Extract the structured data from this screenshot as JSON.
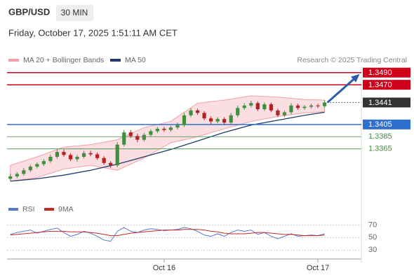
{
  "header": {
    "symbol": "GBP/USD",
    "timeframe": "30 MIN",
    "datetime": "Friday, October 17, 2025 1:51:11 AM CET"
  },
  "chart_data": [
    {
      "type": "candlestick",
      "source": "Research © 2025 Trading Central",
      "xlim": [
        -0.5,
        52.5
      ],
      "ylim": [
        1.3305,
        1.35
      ],
      "xticks": [
        {
          "value": 23,
          "label": "Oct 16"
        },
        {
          "value": 46,
          "label": "Oct 17"
        }
      ],
      "up_color": "#3f8f3f",
      "down_color": "#b22222",
      "x": [
        0,
        1,
        2,
        3,
        4,
        5,
        6,
        7,
        8,
        9,
        10,
        11,
        12,
        13,
        14,
        15,
        16,
        17,
        18,
        19,
        20,
        21,
        22,
        23,
        24,
        25,
        26,
        27,
        28,
        29,
        30,
        31,
        32,
        33,
        34,
        35,
        36,
        37,
        38,
        39,
        40,
        41,
        42,
        43,
        44,
        45,
        46,
        47
      ],
      "open": [
        1.3316,
        1.332,
        1.3324,
        1.333,
        1.3336,
        1.334,
        1.3345,
        1.3352,
        1.336,
        1.3355,
        1.3348,
        1.3352,
        1.3358,
        1.3356,
        1.335,
        1.3342,
        1.3338,
        1.3372,
        1.3392,
        1.3386,
        1.338,
        1.3388,
        1.3394,
        1.3398,
        1.3396,
        1.34,
        1.3404,
        1.342,
        1.3428,
        1.3424,
        1.3415,
        1.341,
        1.3414,
        1.3408,
        1.342,
        1.3432,
        1.3436,
        1.344,
        1.343,
        1.3438,
        1.3428,
        1.342,
        1.3425,
        1.3436,
        1.3432,
        1.3434,
        1.3436,
        1.3435
      ],
      "high": [
        1.3324,
        1.3327,
        1.3334,
        1.3339,
        1.3343,
        1.3348,
        1.3356,
        1.3364,
        1.3364,
        1.3358,
        1.3355,
        1.3362,
        1.3362,
        1.3359,
        1.3353,
        1.3345,
        1.3376,
        1.3396,
        1.3396,
        1.339,
        1.3391,
        1.3397,
        1.3401,
        1.3401,
        1.3403,
        1.3408,
        1.3424,
        1.3432,
        1.3431,
        1.3427,
        1.3418,
        1.3417,
        1.3417,
        1.3424,
        1.3436,
        1.344,
        1.3444,
        1.3443,
        1.3441,
        1.3441,
        1.3431,
        1.3428,
        1.344,
        1.3439,
        1.3437,
        1.3439,
        1.3439,
        1.3445
      ],
      "low": [
        1.3313,
        1.3317,
        1.3321,
        1.3327,
        1.3333,
        1.3337,
        1.3342,
        1.3349,
        1.3352,
        1.3345,
        1.3344,
        1.3349,
        1.3353,
        1.3347,
        1.3339,
        1.3334,
        1.3335,
        1.3369,
        1.3383,
        1.3376,
        1.3377,
        1.3385,
        1.3391,
        1.3393,
        1.3393,
        1.3397,
        1.3401,
        1.3417,
        1.3421,
        1.3412,
        1.3406,
        1.3407,
        1.3404,
        1.3405,
        1.3417,
        1.3429,
        1.3433,
        1.3427,
        1.3427,
        1.3425,
        1.3417,
        1.3417,
        1.3422,
        1.3429,
        1.3429,
        1.3431,
        1.3432,
        1.3432
      ],
      "close": [
        1.332,
        1.3324,
        1.333,
        1.3336,
        1.334,
        1.3345,
        1.3352,
        1.336,
        1.3355,
        1.3348,
        1.3352,
        1.3358,
        1.3356,
        1.335,
        1.3342,
        1.3338,
        1.3372,
        1.3392,
        1.3386,
        1.338,
        1.3388,
        1.3394,
        1.3398,
        1.3396,
        1.34,
        1.3404,
        1.342,
        1.3428,
        1.3424,
        1.3415,
        1.341,
        1.3414,
        1.3408,
        1.342,
        1.3432,
        1.3436,
        1.344,
        1.343,
        1.3438,
        1.3428,
        1.342,
        1.3425,
        1.3436,
        1.3432,
        1.3434,
        1.3436,
        1.3435,
        1.3441
      ],
      "overlays": [
        {
          "name": "MA 20 + Bollinger Bands",
          "color": "#f2a0a8",
          "x": [
            0,
            4,
            8,
            12,
            16,
            20,
            24,
            28,
            32,
            36,
            40,
            44,
            47
          ],
          "upper": [
            1.3338,
            1.3352,
            1.3368,
            1.3372,
            1.338,
            1.34,
            1.341,
            1.344,
            1.3445,
            1.3452,
            1.345,
            1.3446,
            1.3445
          ],
          "lower": [
            1.3312,
            1.3318,
            1.3332,
            1.3338,
            1.333,
            1.335,
            1.3375,
            1.3385,
            1.3398,
            1.341,
            1.3418,
            1.3424,
            1.3426
          ]
        },
        {
          "name": "MA 50",
          "color": "#1f3a6b",
          "x": [
            0,
            4,
            8,
            12,
            16,
            20,
            24,
            28,
            32,
            36,
            40,
            44,
            47
          ],
          "values": [
            1.3312,
            1.3316,
            1.3322,
            1.333,
            1.334,
            1.3352,
            1.3364,
            1.3378,
            1.3392,
            1.3404,
            1.3412,
            1.342,
            1.3425
          ]
        }
      ],
      "levels": [
        {
          "value": 1.349,
          "label": "1.3490",
          "color": "#d0021b",
          "style": "box"
        },
        {
          "value": 1.347,
          "label": "1.3470",
          "color": "#d0021b",
          "style": "box"
        },
        {
          "value": 1.3441,
          "color": "#333333",
          "style": "current"
        },
        {
          "value": 1.3405,
          "color": "#2f6fd0",
          "style": "box"
        },
        {
          "value": 1.3385,
          "color": "#3f8f3f",
          "style": "text"
        },
        {
          "value": 1.3365,
          "color": "#3f8f3f",
          "style": "text"
        }
      ]
    },
    {
      "type": "line",
      "xlim": [
        -0.5,
        52.5
      ],
      "ylim": [
        18,
        85
      ],
      "yticks": [
        30,
        50,
        70
      ],
      "x": [
        0,
        1,
        2,
        3,
        4,
        5,
        6,
        7,
        8,
        9,
        10,
        11,
        12,
        13,
        14,
        15,
        16,
        17,
        18,
        19,
        20,
        21,
        22,
        23,
        24,
        25,
        26,
        27,
        28,
        29,
        30,
        31,
        32,
        33,
        34,
        35,
        36,
        37,
        38,
        39,
        40,
        41,
        42,
        43,
        44,
        45,
        46,
        47
      ],
      "series": [
        {
          "name": "RSI",
          "color": "#5a78c8",
          "values": [
            55,
            58,
            60,
            62,
            57,
            60,
            63,
            65,
            58,
            52,
            55,
            60,
            57,
            52,
            46,
            44,
            60,
            66,
            60,
            58,
            62,
            64,
            63,
            61,
            62,
            63,
            66,
            64,
            60,
            54,
            52,
            56,
            52,
            58,
            62,
            60,
            62,
            55,
            58,
            52,
            48,
            52,
            56,
            52,
            53,
            54,
            53,
            56
          ]
        },
        {
          "name": "9MA",
          "color": "#c62828",
          "values": [
            54,
            55,
            56,
            57,
            58,
            59,
            60,
            60,
            60,
            59,
            59,
            59,
            58,
            57,
            55,
            53,
            53,
            55,
            57,
            58,
            59,
            60,
            61,
            62,
            62,
            62,
            63,
            63,
            63,
            62,
            60,
            59,
            57,
            56,
            56,
            56,
            57,
            58,
            58,
            57,
            56,
            55,
            55,
            54,
            53,
            53,
            53,
            54
          ]
        }
      ]
    }
  ]
}
